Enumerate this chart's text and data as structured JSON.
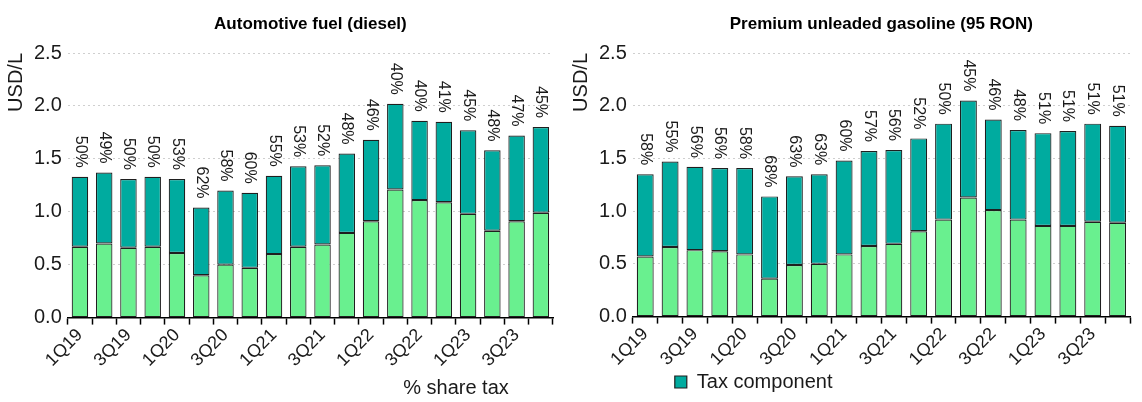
{
  "chart_data": [
    {
      "type": "bar",
      "title": "Automotive fuel (diesel)",
      "ylabel": "USD/L",
      "categories": [
        "1Q19",
        null,
        "3Q19",
        null,
        "1Q20",
        null,
        "3Q20",
        null,
        "1Q21",
        null,
        "3Q21",
        null,
        "1Q22",
        null,
        "3Q22",
        null,
        "1Q23",
        null,
        "3Q23",
        null
      ],
      "stacked": true,
      "series": [
        {
          "color": "#69f08f",
          "values": [
            0.67,
            0.7,
            0.66,
            0.67,
            0.61,
            0.4,
            0.5,
            0.47,
            0.6,
            0.67,
            0.69,
            0.8,
            0.91,
            1.21,
            1.11,
            1.09,
            0.98,
            0.82,
            0.91,
            0.99
          ]
        },
        {
          "color": "#00ab9f",
          "values": [
            0.66,
            0.67,
            0.65,
            0.66,
            0.7,
            0.64,
            0.7,
            0.71,
            0.74,
            0.76,
            0.75,
            0.75,
            0.77,
            0.81,
            0.75,
            0.76,
            0.79,
            0.76,
            0.81,
            0.81
          ]
        }
      ],
      "ylim": [
        0,
        2.5
      ],
      "yticks": [
        {
          "value": 0,
          "label": "0.0"
        },
        0.5,
        {
          "value": 1,
          "label": "1.0"
        },
        1.5,
        {
          "value": 2,
          "label": "2.0"
        },
        2.5
      ],
      "grid": "y",
      "annotations": [
        "% share tax",
        {
          "text": "50%",
          "x": "1Q19",
          "y": 1.33
        },
        {
          "text": "49%",
          "y": 1.37
        },
        {
          "text": "50%",
          "x": "3Q19",
          "y": 1.31
        },
        {
          "text": "50%",
          "y": 1.33
        },
        {
          "text": "53%",
          "x": "1Q20",
          "y": 1.31
        },
        {
          "text": "62%",
          "y": 1.04
        },
        {
          "text": "58%",
          "x": "3Q20",
          "y": 1.2
        },
        {
          "text": "60%",
          "y": 1.18
        },
        {
          "text": "55%",
          "x": "1Q21",
          "y": 1.34
        },
        {
          "text": "53%",
          "y": 1.43
        },
        {
          "text": "52%",
          "x": "3Q21",
          "y": 1.44
        },
        {
          "text": "48%",
          "y": 1.55
        },
        {
          "text": "46%",
          "x": "1Q22",
          "y": 1.68
        },
        "40%",
        {
          "text": "40%",
          "x": "3Q22",
          "y": 1.86
        },
        {
          "text": "41%",
          "y": 1.85
        },
        {
          "text": "45%",
          "x": "1Q23",
          "y": 1.77
        },
        {
          "text": "48%",
          "y": 1.58
        },
        {
          "text": "47%",
          "x": "3Q23",
          "y": 1.72
        },
        {
          "text": "45%",
          "y": 1.8
        }
      ]
    },
    {
      "type": "bar",
      "title": "Premium unleaded gasoline (95 RON)",
      "ylabel": "USD/L",
      "categories": [
        "1Q19",
        null,
        "3Q19",
        null,
        "1Q20",
        null,
        "3Q20",
        null,
        "1Q21",
        null,
        "3Q21",
        null,
        "1Q22",
        null,
        "3Q22",
        null,
        "1Q23",
        null,
        "3Q23",
        null
      ],
      "stacked": true,
      "series": [
        {
          "color": "#69f08f",
          "values": [
            0.57,
            0.66,
            0.63,
            0.62,
            0.59,
            0.36,
            0.49,
            0.5,
            0.59,
            0.67,
            0.69,
            0.81,
            0.92,
            1.13,
            1.01,
            0.92,
            0.86,
            0.86,
            0.9,
            0.89
          ]
        },
        {
          "name": "Tax component",
          "color": "#00ab9f",
          "values": [
            0.78,
            0.81,
            0.79,
            0.79,
            0.82,
            0.78,
            0.84,
            0.85,
            0.89,
            0.9,
            0.89,
            0.88,
            0.91,
            0.92,
            0.86,
            0.85,
            0.88,
            0.9,
            0.93,
            0.92
          ]
        }
      ],
      "ylim": [
        0,
        2.5
      ],
      "yticks": [
        {
          "value": 0,
          "label": "0.0"
        },
        0.5,
        {
          "value": 1,
          "label": "1.0"
        },
        1.5,
        {
          "value": 2,
          "label": "2.0"
        },
        2.5
      ],
      "grid": "y",
      "legend": "bottom left",
      "annotations": [
        {
          "text": "58%",
          "x": "1Q19",
          "y": 1.35
        },
        {
          "text": "55%",
          "y": 1.47
        },
        {
          "text": "56%",
          "x": "3Q19",
          "y": 1.42
        },
        {
          "text": "56%",
          "y": 1.41
        },
        {
          "text": "58%",
          "x": "1Q20",
          "y": 1.41
        },
        {
          "text": "68%",
          "y": 1.14
        },
        {
          "text": "63%",
          "x": "3Q20",
          "y": 1.33
        },
        {
          "text": "63%",
          "y": 1.35
        },
        {
          "text": "60%",
          "x": "1Q21",
          "y": 1.48
        },
        {
          "text": "57%",
          "y": 1.57
        },
        {
          "text": "56%",
          "x": "3Q21",
          "y": 1.58
        },
        {
          "text": "52%",
          "y": 1.69
        },
        {
          "text": "50%",
          "x": "1Q22",
          "y": 1.83
        },
        {
          "text": "45%",
          "y": 2.05
        },
        {
          "text": "46%",
          "x": "3Q22",
          "y": 1.87
        },
        {
          "text": "48%",
          "y": 1.77
        },
        {
          "text": "51%",
          "x": "1Q23",
          "y": 1.74
        },
        {
          "text": "51%",
          "y": 1.76
        },
        {
          "text": "51%",
          "x": "3Q23",
          "y": 1.83
        },
        {
          "text": "51%",
          "y": 1.81
        }
      ]
    }
  ]
}
